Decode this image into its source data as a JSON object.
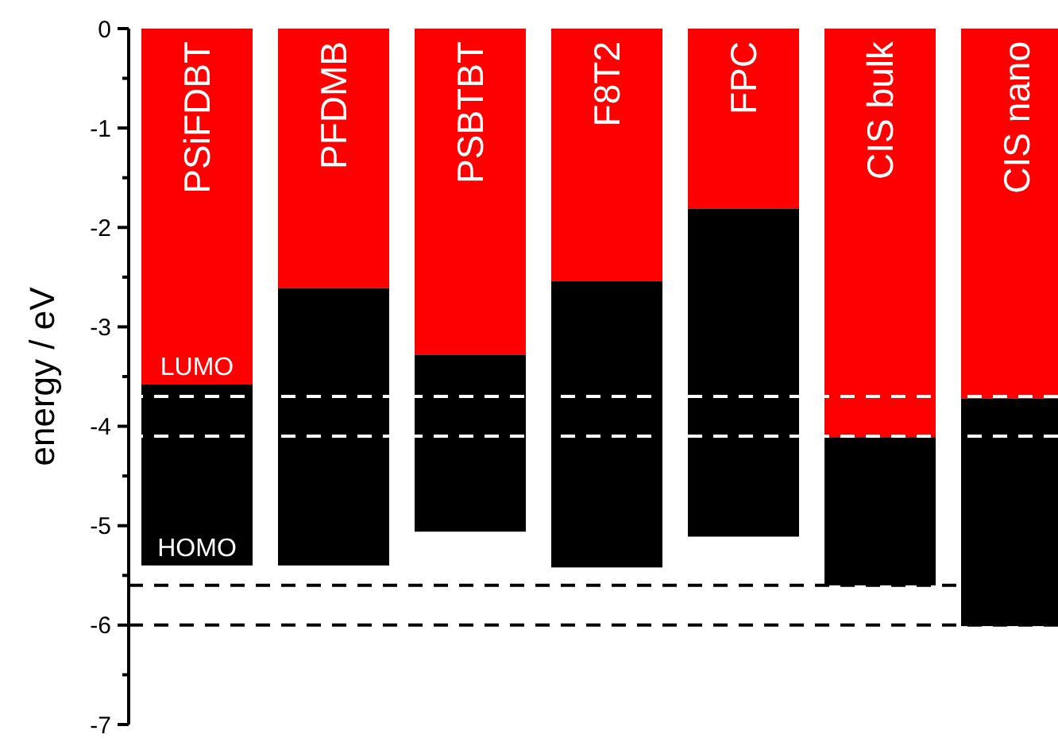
{
  "chart_data": {
    "type": "bar",
    "stacked": true,
    "ylabel": "energy / eV",
    "categories": [
      "PSiFDBT",
      "PFDMB",
      "PSBTBT",
      "F8T2",
      "FPC",
      "CIS  bulk",
      "CIS nano"
    ],
    "series": [
      {
        "color": "#ff0000",
        "values": [
          -3.58,
          -2.61,
          -3.28,
          -2.54,
          -1.81,
          -4.11,
          -3.72
        ]
      },
      {
        "color": "#000000",
        "values": [
          -1.82,
          -2.79,
          -1.78,
          -2.88,
          -3.3,
          -1.49,
          -2.29
        ]
      }
    ],
    "ylim": [
      -7,
      0
    ],
    "yticks": [
      0,
      {
        "value": -0.5,
        "label": null
      },
      -1,
      {
        "value": -1.5,
        "label": null
      },
      -2,
      {
        "value": -2.5,
        "label": null
      },
      -3,
      {
        "value": -3.5,
        "label": null
      },
      -4,
      {
        "value": -4.5,
        "label": null
      },
      -5,
      {
        "value": -5.5,
        "label": null
      },
      -6,
      {
        "value": -6.5,
        "label": null
      },
      -7
    ],
    "ref_lines": [
      {
        "axis": "y",
        "value": -3.7,
        "color": "#ffffff",
        "line_style": "dashed"
      },
      {
        "axis": "y",
        "value": -4.1,
        "color": "#ffffff",
        "line_style": "dashed"
      },
      {
        "axis": "y",
        "value": -5.6,
        "color": "#000000",
        "line_style": "dashed"
      },
      {
        "axis": "y",
        "value": -6.0,
        "color": "#000000",
        "line_style": "dashed"
      }
    ],
    "annotations": [
      {
        "text": "LUMO",
        "x": "PSiFDBT",
        "y": -3.58
      },
      {
        "text": "HOMO",
        "x": "PSiFDBT",
        "y": -5.4
      }
    ],
    "grid": false
  }
}
